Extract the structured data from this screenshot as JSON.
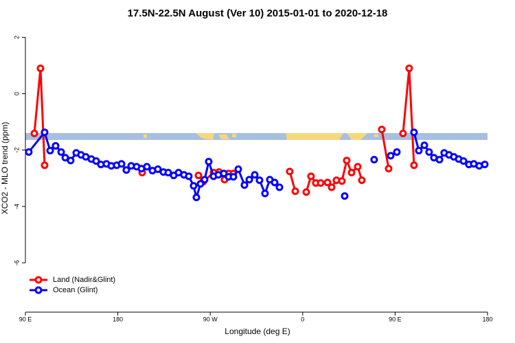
{
  "chart_data": {
    "type": "line",
    "title": "17.5N-22.5N August (Ver 10)   2015-01-01 to 2020-12-18",
    "xlabel": "Longitude (deg E)",
    "ylabel": "XCO2 - MLO trend (ppm)",
    "xlim": [
      90,
      540
    ],
    "ylim": [
      -7.75,
      2.35
    ],
    "xticks": [
      {
        "value": 90,
        "label": "90 E"
      },
      180,
      {
        "value": 270,
        "label": "90 W"
      },
      {
        "value": 360,
        "label": "0"
      },
      {
        "value": 450,
        "label": "90 E"
      },
      {
        "value": 540,
        "label": "180"
      }
    ],
    "yticks": [
      2,
      0,
      -2,
      -4,
      -6
    ],
    "legend": "bottom-left",
    "series": [
      {
        "name": "Land (Nadir&Glint)",
        "color": "#ff0000",
        "x": [
          98.7,
          104.7,
          108.7,
          null,
          203.7,
          null,
          258.5,
          263.2,
          273.2,
          278.5,
          283.9,
          287.9,
          292.6,
          null,
          347.4,
          352.8,
          null,
          363.5,
          368.1,
          372.8,
          377.5,
          384.2,
          388.2,
          392.9,
          398.2,
          402.9,
          407.6,
          413.6,
          417.6,
          null,
          437.0,
          443.7,
          null,
          457.7,
          463.7,
          468.4
        ],
        "values": [
          -1.41,
          0.9,
          -2.54,
          null,
          -2.8,
          null,
          -2.9,
          -3.12,
          -2.8,
          -2.78,
          -3.05,
          -2.83,
          -2.83,
          null,
          -2.76,
          -3.46,
          null,
          -3.49,
          -2.93,
          -3.17,
          -3.17,
          -3.15,
          -3.32,
          -3.07,
          -3.1,
          -2.37,
          -2.8,
          -2.59,
          -3.07,
          null,
          -1.27,
          -2.66,
          null,
          -1.41,
          0.9,
          -2.54
        ]
      },
      {
        "name": "Ocean (Glint)",
        "color": "#0000ff",
        "x": [
          93.3,
          108.7,
          114.1,
          119.4,
          124.8,
          128.8,
          134.1,
          139.5,
          144.2,
          148.8,
          154.2,
          158.9,
          163.5,
          168.9,
          173.6,
          178.9,
          183.6,
          188.3,
          193.0,
          198.3,
          203.0,
          208.3,
          213.7,
          219.0,
          224.4,
          229.1,
          234.4,
          239.1,
          244.4,
          249.1,
          253.8,
          256.5,
          260.5,
          264.5,
          268.5,
          273.2,
          277.9,
          283.2,
          287.9,
          292.6,
          297.3,
          303.3,
          308.0,
          313.3,
          318.0,
          323.3,
          328.0,
          332.7,
          337.4,
          null,
          400.9,
          null,
          429.6,
          null,
          445.7,
          451.7,
          null,
          468.4,
          473.1,
          478.5,
          483.1,
          487.8,
          493.2,
          497.8,
          502.5,
          507.2,
          511.9,
          516.6,
          521.9,
          526.6,
          531.9,
          537.3
        ],
        "values": [
          -2.07,
          -1.37,
          -2.02,
          -1.85,
          -2.07,
          -2.27,
          -2.37,
          -2.1,
          -2.17,
          -2.24,
          -2.32,
          -2.39,
          -2.51,
          -2.49,
          -2.56,
          -2.54,
          -2.49,
          -2.71,
          -2.56,
          -2.59,
          -2.66,
          -2.59,
          -2.73,
          -2.68,
          -2.78,
          -2.8,
          -2.9,
          -2.8,
          -2.88,
          -2.93,
          -3.27,
          -3.68,
          -3.2,
          -3.05,
          -2.41,
          -2.93,
          -2.88,
          -2.83,
          -2.95,
          -2.95,
          -2.68,
          -3.24,
          -3.05,
          -2.88,
          -3.07,
          -3.54,
          -3.05,
          -3.15,
          -3.32,
          null,
          -3.63,
          null,
          -2.34,
          null,
          -2.2,
          -2.07,
          null,
          -1.37,
          -2.02,
          -1.83,
          -2.07,
          -2.27,
          -2.34,
          -2.1,
          -2.17,
          -2.24,
          -2.32,
          -2.39,
          -2.51,
          -2.49,
          -2.56,
          -2.51
        ]
      }
    ]
  }
}
